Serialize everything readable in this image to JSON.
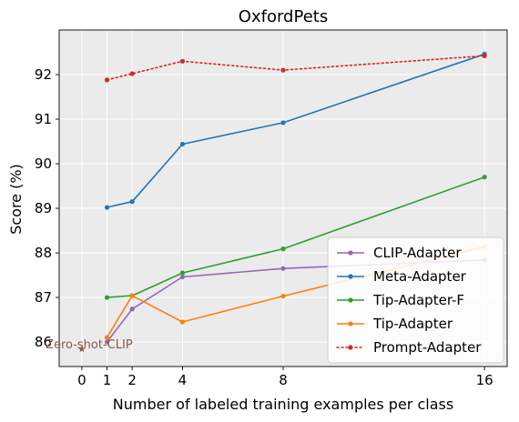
{
  "chart_data": {
    "type": "line",
    "title": "OxfordPets",
    "xlabel": "Number of labeled training examples per class",
    "ylabel": "Score (%)",
    "xlim": [
      -0.9,
      16.9
    ],
    "ylim": [
      85.45,
      93.0
    ],
    "x_ticks": [
      0,
      1,
      2,
      4,
      8,
      16
    ],
    "y_ticks": [
      86,
      87,
      88,
      89,
      90,
      91,
      92
    ],
    "grid": true,
    "legend_position": "lower-right",
    "background": "#ebebeb",
    "series": [
      {
        "name": "CLIP-Adapter",
        "color": "#9467bd",
        "dash": "solid",
        "x": [
          1,
          2,
          4,
          8,
          16
        ],
        "y": [
          86.0,
          86.74,
          87.46,
          87.65,
          87.84
        ]
      },
      {
        "name": "Meta-Adapter",
        "color": "#1f77b4",
        "dash": "solid",
        "x": [
          1,
          2,
          4,
          8,
          16
        ],
        "y": [
          89.02,
          89.15,
          90.44,
          90.92,
          92.46
        ]
      },
      {
        "name": "Tip-Adapter-F",
        "color": "#2ca02c",
        "dash": "solid",
        "x": [
          1,
          2,
          4,
          8,
          16
        ],
        "y": [
          87.0,
          87.04,
          87.55,
          88.09,
          89.7
        ]
      },
      {
        "name": "Tip-Adapter",
        "color": "#ff7f0e",
        "dash": "solid",
        "x": [
          1,
          2,
          4,
          8,
          16
        ],
        "y": [
          86.1,
          87.04,
          86.45,
          87.03,
          88.14
        ]
      },
      {
        "name": "Prompt-Adapter",
        "color": "#d62728",
        "dash": "dotted",
        "x": [
          1,
          2,
          4,
          8,
          16
        ],
        "y": [
          91.88,
          92.02,
          92.3,
          92.1,
          92.42
        ]
      }
    ],
    "annotations": [
      {
        "label": "Zero-shot-CLIP",
        "x": 0,
        "y": 85.84,
        "color": "#8c564b",
        "marker": "star"
      }
    ]
  }
}
